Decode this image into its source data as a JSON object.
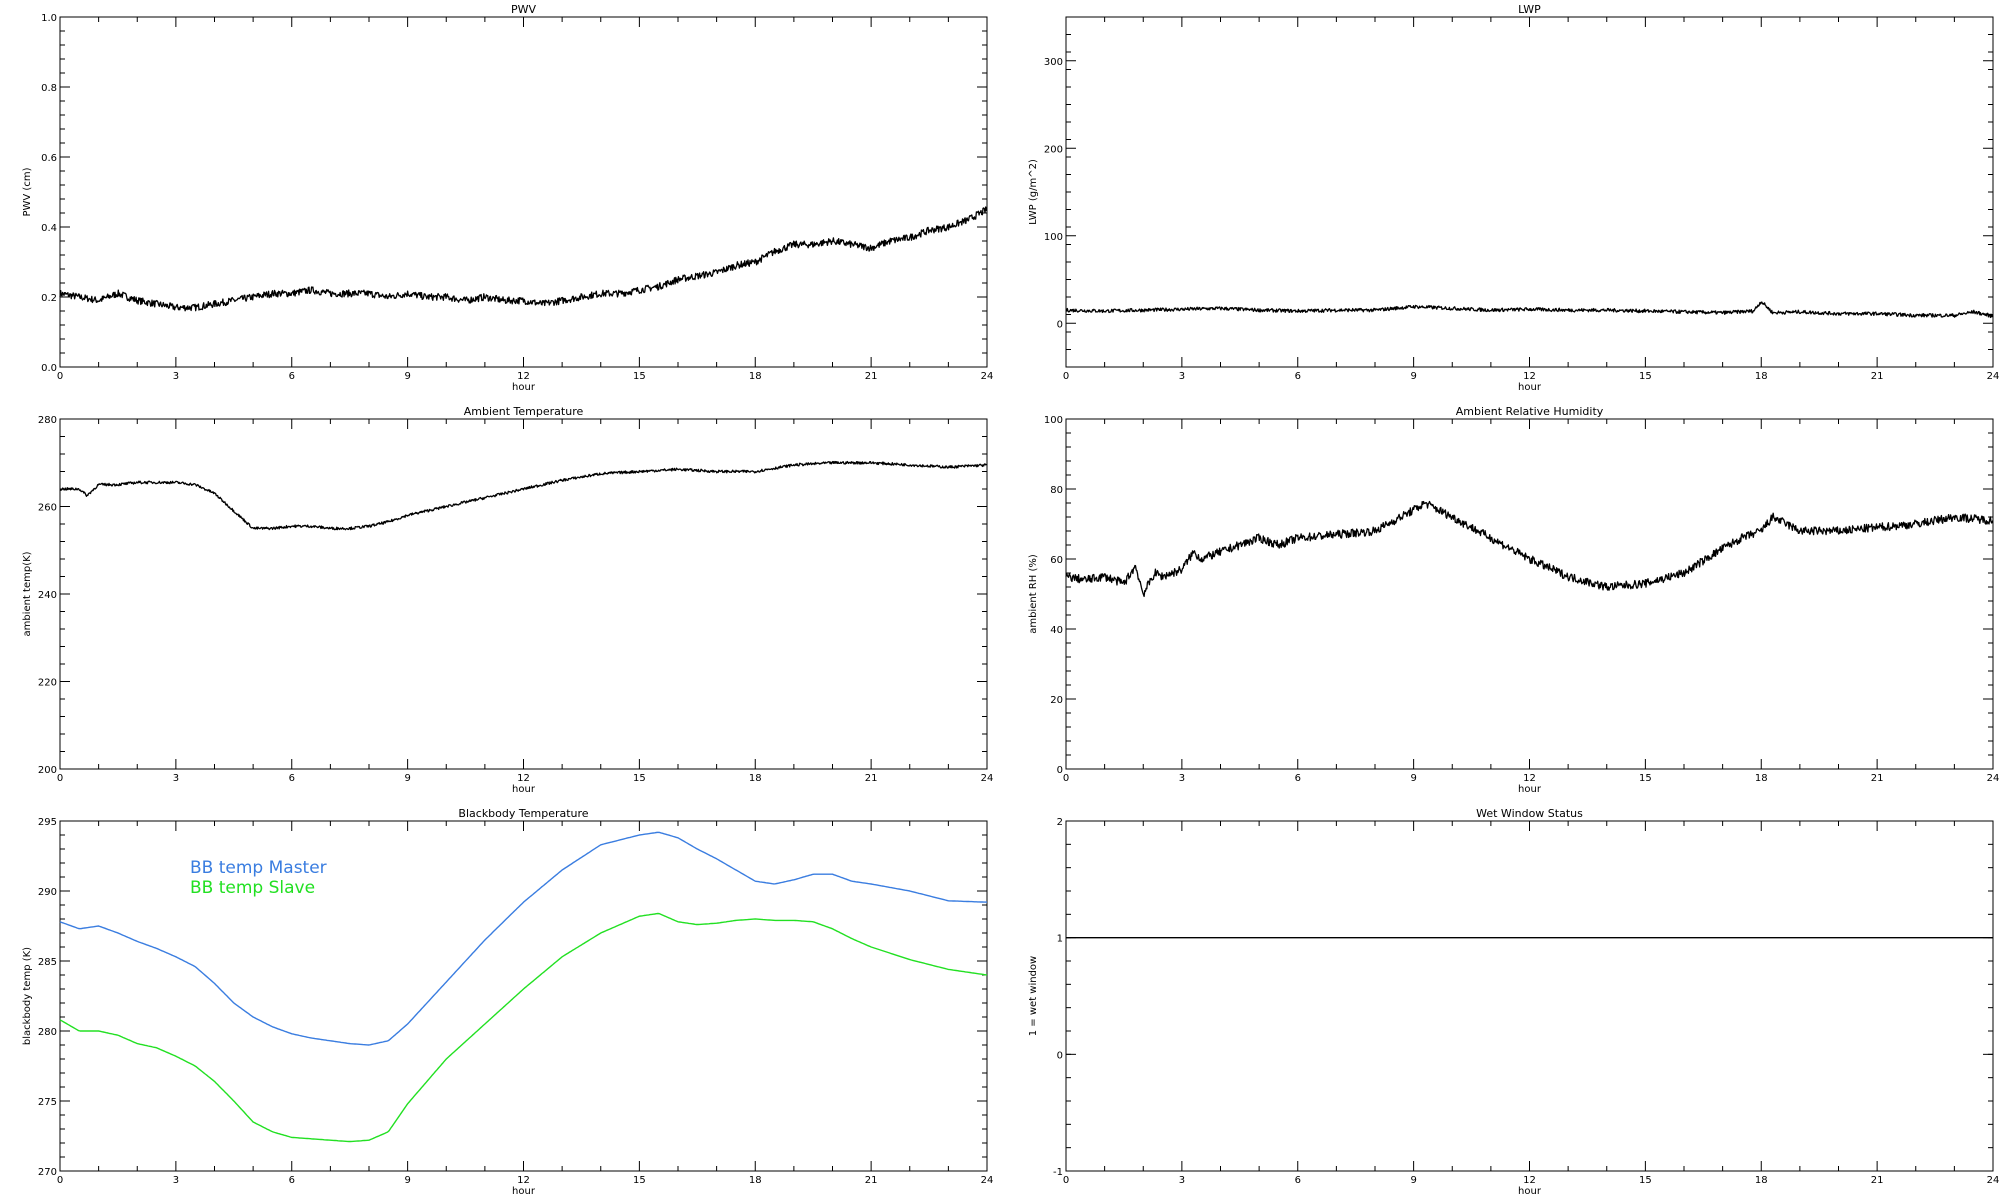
{
  "chart_data": [
    {
      "type": "line",
      "title": "PWV",
      "xlabel": "hour",
      "ylabel": "PWV (cm)",
      "xlim": [
        0,
        24
      ],
      "ylim": [
        0,
        1.0
      ],
      "xticks": [
        0,
        3,
        6,
        9,
        12,
        15,
        18,
        21,
        24
      ],
      "yticks": [
        0.0,
        0.2,
        0.4,
        0.6,
        0.8,
        1.0
      ],
      "ytick_labels": [
        "0.0",
        "0.2",
        "0.4",
        "0.6",
        "0.8",
        "1.0"
      ],
      "noise": 0.01,
      "series": [
        {
          "color": "#000000",
          "x": [
            0,
            0.5,
            1,
            1.5,
            2,
            2.5,
            3,
            3.5,
            4,
            4.5,
            5,
            5.5,
            6,
            6.5,
            7,
            7.5,
            8,
            8.5,
            9,
            9.5,
            10,
            10.5,
            11,
            11.5,
            12,
            12.5,
            13,
            13.5,
            14,
            14.5,
            15,
            15.5,
            16,
            16.5,
            17,
            17.5,
            18,
            18.5,
            19,
            19.5,
            20,
            20.5,
            21,
            21.5,
            22,
            22.5,
            23,
            23.5,
            24
          ],
          "values": [
            0.21,
            0.2,
            0.19,
            0.21,
            0.19,
            0.18,
            0.17,
            0.17,
            0.18,
            0.19,
            0.2,
            0.21,
            0.21,
            0.22,
            0.21,
            0.21,
            0.21,
            0.2,
            0.21,
            0.2,
            0.2,
            0.19,
            0.2,
            0.19,
            0.19,
            0.18,
            0.19,
            0.2,
            0.21,
            0.21,
            0.22,
            0.23,
            0.25,
            0.26,
            0.27,
            0.29,
            0.3,
            0.33,
            0.35,
            0.35,
            0.36,
            0.35,
            0.34,
            0.36,
            0.37,
            0.39,
            0.4,
            0.42,
            0.45
          ]
        }
      ]
    },
    {
      "type": "line",
      "title": "LWP",
      "xlabel": "hour",
      "ylabel": "LWP (g/m^2)",
      "xlim": [
        0,
        24
      ],
      "ylim": [
        -50,
        350
      ],
      "xticks": [
        0,
        3,
        6,
        9,
        12,
        15,
        18,
        21,
        24
      ],
      "yticks": [
        0,
        100,
        200,
        300
      ],
      "ytick_labels": [
        "0",
        "100",
        "200",
        "300"
      ],
      "noise": 2,
      "series": [
        {
          "color": "#000000",
          "x": [
            0,
            1,
            2,
            3,
            4,
            5,
            6,
            7,
            8,
            9,
            10,
            11,
            12,
            13,
            14,
            15,
            16,
            17,
            17.8,
            18,
            18.3,
            19,
            20,
            21,
            22,
            23,
            23.5,
            24
          ],
          "values": [
            15,
            14,
            15,
            16,
            17,
            15,
            14,
            15,
            15,
            19,
            17,
            15,
            16,
            15,
            15,
            14,
            13,
            12,
            14,
            25,
            12,
            13,
            11,
            11,
            9,
            9,
            13,
            8
          ]
        }
      ]
    },
    {
      "type": "line",
      "title": "Ambient Temperature",
      "xlabel": "hour",
      "ylabel": "ambient temp(K)",
      "xlim": [
        0,
        24
      ],
      "ylim": [
        200,
        280
      ],
      "xticks": [
        0,
        3,
        6,
        9,
        12,
        15,
        18,
        21,
        24
      ],
      "yticks": [
        200,
        220,
        240,
        260,
        280
      ],
      "ytick_labels": [
        "200",
        "220",
        "240",
        "260",
        "280"
      ],
      "noise": 0.3,
      "series": [
        {
          "color": "#000000",
          "x": [
            0,
            0.5,
            0.7,
            1,
            1.5,
            2,
            2.5,
            3,
            3.5,
            4,
            4.5,
            5,
            5.5,
            6,
            6.5,
            7,
            7.5,
            8,
            8.5,
            9,
            10,
            11,
            12,
            13,
            14,
            15,
            16,
            17,
            18,
            19,
            20,
            21,
            22,
            23,
            24
          ],
          "values": [
            264,
            264,
            262.5,
            265,
            265,
            265.5,
            265.5,
            265.5,
            265,
            263,
            259,
            255,
            255,
            255.5,
            255.5,
            255,
            255,
            255.5,
            256.5,
            258,
            260,
            262,
            264,
            266,
            267.5,
            268,
            268.5,
            268,
            268,
            269.5,
            270,
            270,
            269.5,
            269,
            269.5
          ]
        }
      ]
    },
    {
      "type": "line",
      "title": "Ambient Relative Humidity",
      "xlabel": "hour",
      "ylabel": "ambient RH (%)",
      "xlim": [
        0,
        24
      ],
      "ylim": [
        0,
        100
      ],
      "xticks": [
        0,
        3,
        6,
        9,
        12,
        15,
        18,
        21,
        24
      ],
      "yticks": [
        0,
        20,
        40,
        60,
        80,
        100
      ],
      "ytick_labels": [
        "0",
        "20",
        "40",
        "60",
        "80",
        "100"
      ],
      "noise": 1.2,
      "series": [
        {
          "color": "#000000",
          "x": [
            0,
            0.5,
            1,
            1.5,
            1.8,
            2,
            2.3,
            2.5,
            3,
            3.3,
            3.5,
            4,
            4.5,
            5,
            5.5,
            6,
            7,
            8,
            8.5,
            9,
            9.3,
            10,
            11,
            12,
            13,
            14,
            15,
            16,
            17,
            17.5,
            18,
            18.3,
            19,
            20,
            21,
            22,
            23,
            24
          ],
          "values": [
            55,
            54,
            55,
            53,
            58,
            50,
            56,
            55,
            57,
            62,
            60,
            62,
            64,
            66,
            64,
            66,
            67,
            68,
            71,
            74,
            76,
            72,
            66,
            60,
            55,
            52,
            53,
            56,
            63,
            66,
            68,
            72,
            68,
            68,
            69,
            70,
            72,
            71
          ]
        }
      ]
    },
    {
      "type": "line",
      "title": "Blackbody Temperature",
      "xlabel": "hour",
      "ylabel": "blackbody temp (K)",
      "xlim": [
        0,
        24
      ],
      "ylim": [
        270,
        295
      ],
      "xticks": [
        0,
        3,
        6,
        9,
        12,
        15,
        18,
        21,
        24
      ],
      "yticks": [
        270,
        275,
        280,
        285,
        290,
        295
      ],
      "ytick_labels": [
        "270",
        "275",
        "280",
        "285",
        "290",
        "295"
      ],
      "noise": 0,
      "legend": [
        "BB temp Master",
        "BB temp Slave"
      ],
      "series": [
        {
          "name": "BB temp Master",
          "color": "#3a7de0",
          "x": [
            0,
            0.5,
            1,
            1.5,
            2,
            2.5,
            3,
            3.5,
            4,
            4.5,
            5,
            5.5,
            6,
            6.5,
            7,
            7.5,
            8,
            8.5,
            9,
            10,
            11,
            12,
            13,
            14,
            15,
            15.5,
            16,
            16.5,
            17,
            17.5,
            18,
            18.5,
            19,
            19.5,
            20,
            20.5,
            21,
            22,
            23,
            24
          ],
          "values": [
            287.8,
            287.3,
            287.5,
            287,
            286.4,
            285.9,
            285.3,
            284.6,
            283.4,
            282,
            281,
            280.3,
            279.8,
            279.5,
            279.3,
            279.1,
            279,
            279.3,
            280.5,
            283.5,
            286.5,
            289.2,
            291.5,
            293.3,
            294,
            294.2,
            293.8,
            293,
            292.3,
            291.5,
            290.7,
            290.5,
            290.8,
            291.2,
            291.2,
            290.7,
            290.5,
            290,
            289.3,
            289.2
          ]
        },
        {
          "name": "BB temp Slave",
          "color": "#22e022",
          "x": [
            0,
            0.5,
            1,
            1.5,
            2,
            2.5,
            3,
            3.5,
            4,
            4.5,
            5,
            5.5,
            6,
            6.5,
            7,
            7.5,
            8,
            8.5,
            9,
            10,
            11,
            12,
            13,
            14,
            15,
            15.5,
            16,
            16.5,
            17,
            17.5,
            18,
            18.5,
            19,
            19.5,
            20,
            20.5,
            21,
            22,
            23,
            24
          ],
          "values": [
            280.8,
            280,
            280,
            279.7,
            279.1,
            278.8,
            278.2,
            277.5,
            276.4,
            275,
            273.5,
            272.8,
            272.4,
            272.3,
            272.2,
            272.1,
            272.2,
            272.8,
            274.8,
            278,
            280.5,
            283,
            285.3,
            287,
            288.2,
            288.4,
            287.8,
            287.6,
            287.7,
            287.9,
            288,
            287.9,
            287.9,
            287.8,
            287.3,
            286.6,
            286,
            285.1,
            284.4,
            284
          ]
        }
      ]
    },
    {
      "type": "line",
      "title": "Wet Window Status",
      "xlabel": "hour",
      "ylabel": "1 = wet window",
      "xlim": [
        0,
        24
      ],
      "ylim": [
        -1,
        2
      ],
      "xticks": [
        0,
        3,
        6,
        9,
        12,
        15,
        18,
        21,
        24
      ],
      "yticks": [
        -1,
        0,
        1,
        2
      ],
      "ytick_labels": [
        "-1",
        "0",
        "1",
        "2"
      ],
      "noise": 0,
      "series": [
        {
          "color": "#000000",
          "x": [
            0,
            24
          ],
          "values": [
            1,
            1
          ]
        }
      ]
    }
  ]
}
